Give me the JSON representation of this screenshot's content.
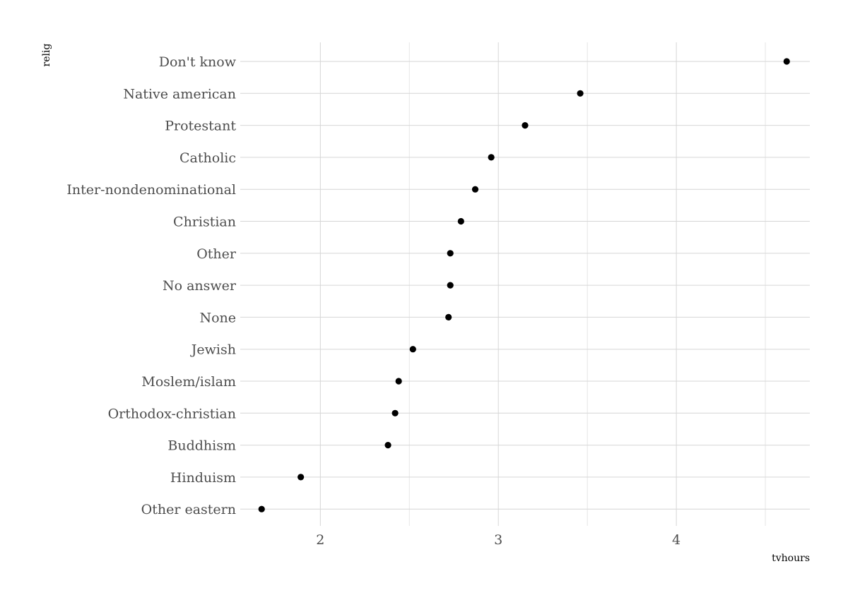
{
  "chart_data": {
    "type": "scatter",
    "xlabel": "tvhours",
    "ylabel": "relig",
    "xlim": [
      1.55,
      4.75
    ],
    "xticks": [
      2,
      3,
      4
    ],
    "xtick_labels": [
      "2",
      "3",
      "4"
    ],
    "grid": true,
    "categories": [
      "Other eastern",
      "Hinduism",
      "Buddhism",
      "Orthodox-christian",
      "Moslem/islam",
      "Jewish",
      "None",
      "No answer",
      "Other",
      "Christian",
      "Inter-nondenominational",
      "Catholic",
      "Protestant",
      "Native american",
      "Don't know"
    ],
    "values": [
      1.67,
      1.89,
      2.38,
      2.42,
      2.44,
      2.52,
      2.72,
      2.73,
      2.73,
      2.79,
      2.87,
      2.96,
      3.15,
      3.46,
      4.62
    ],
    "point_color": "#000000"
  }
}
